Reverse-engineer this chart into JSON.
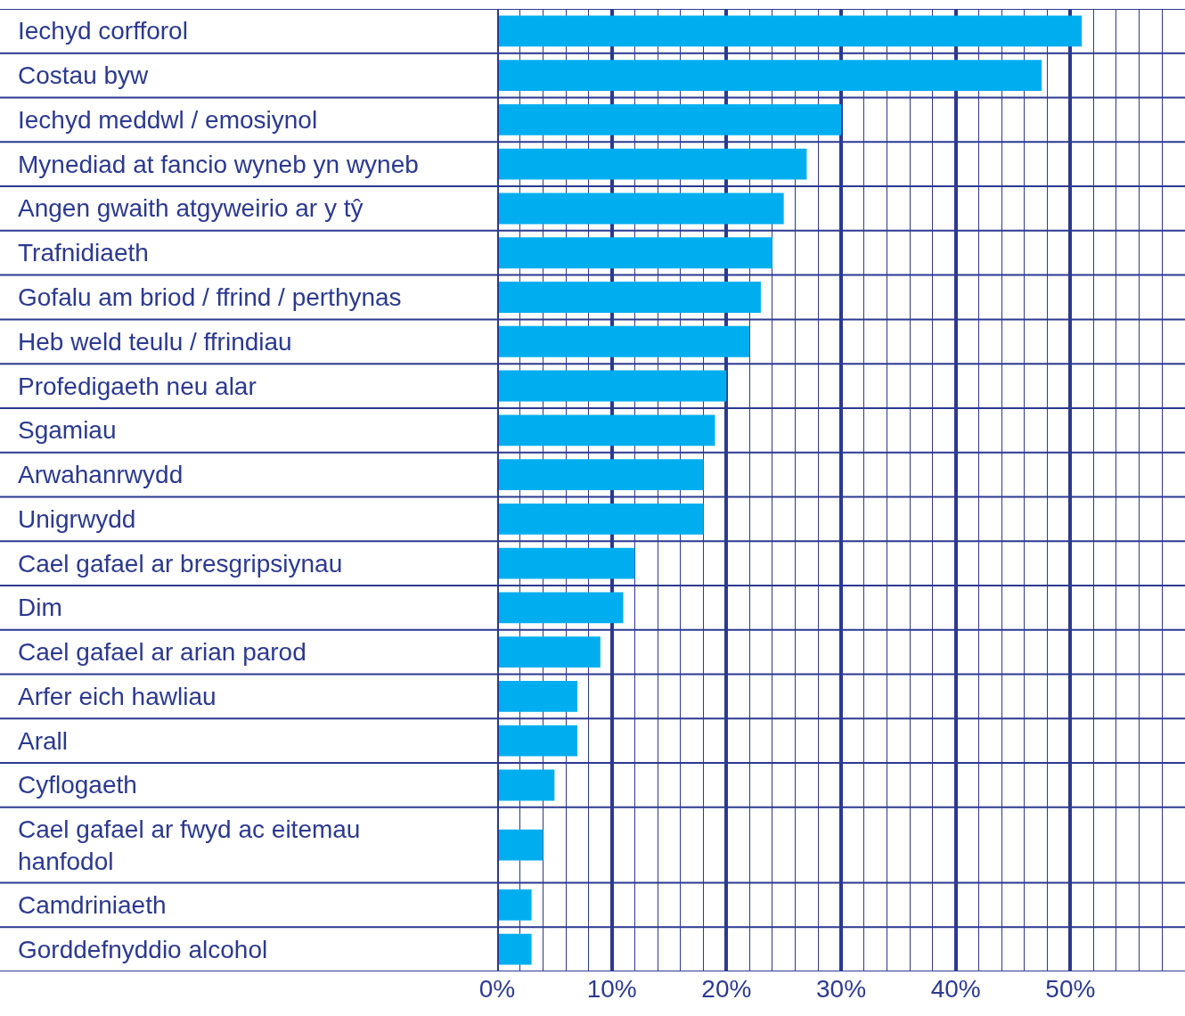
{
  "chart_data": {
    "type": "bar",
    "orientation": "horizontal",
    "categories": [
      "Iechyd corfforol",
      "Costau byw",
      "Iechyd meddwl / emosiynol",
      "Mynediad at fancio wyneb yn wyneb",
      "Angen gwaith atgyweirio ar y tŷ",
      "Trafnidiaeth",
      "Gofalu am briod / ffrind / perthynas",
      "Heb weld teulu / ffrindiau",
      "Profedigaeth neu alar",
      "Sgamiau",
      "Arwahanrwydd",
      "Unigrwydd",
      "Cael gafael ar bresgripsiynau",
      "Dim",
      "Cael gafael ar arian parod",
      "Arfer eich hawliau",
      "Arall",
      "Cyflogaeth",
      "Cael gafael ar fwyd ac eitemau hanfodol",
      "Camdriniaeth",
      "Gorddefnyddio alcohol"
    ],
    "values": [
      51,
      47.5,
      30,
      27,
      25,
      24,
      23,
      22,
      20,
      19,
      18,
      18,
      12,
      11,
      9,
      7,
      7,
      5,
      4,
      3,
      3
    ],
    "color": "#00aeef",
    "xlim": [
      0,
      60
    ],
    "xticks": [
      {
        "value": 0,
        "label": "0%"
      },
      {
        "value": 2,
        "label": null
      },
      {
        "value": 4,
        "label": null
      },
      {
        "value": 6,
        "label": null
      },
      {
        "value": 8,
        "label": null
      },
      {
        "value": 10,
        "label": "10%"
      },
      {
        "value": 12,
        "label": null
      },
      {
        "value": 14,
        "label": null
      },
      {
        "value": 16,
        "label": null
      },
      {
        "value": 18,
        "label": null
      },
      {
        "value": 20,
        "label": "20%"
      },
      {
        "value": 22,
        "label": null
      },
      {
        "value": 24,
        "label": null
      },
      {
        "value": 26,
        "label": null
      },
      {
        "value": 28,
        "label": null
      },
      {
        "value": 30,
        "label": "30%"
      },
      {
        "value": 32,
        "label": null
      },
      {
        "value": 34,
        "label": null
      },
      {
        "value": 36,
        "label": null
      },
      {
        "value": 38,
        "label": null
      },
      {
        "value": 40,
        "label": "40%"
      },
      {
        "value": 42,
        "label": null
      },
      {
        "value": 44,
        "label": null
      },
      {
        "value": 46,
        "label": null
      },
      {
        "value": 48,
        "label": null
      },
      {
        "value": 50,
        "label": "50%"
      },
      {
        "value": 52,
        "label": null
      },
      {
        "value": 54,
        "label": null
      },
      {
        "value": 56,
        "label": null
      },
      {
        "value": 58,
        "label": null
      }
    ],
    "grid": "x"
  }
}
